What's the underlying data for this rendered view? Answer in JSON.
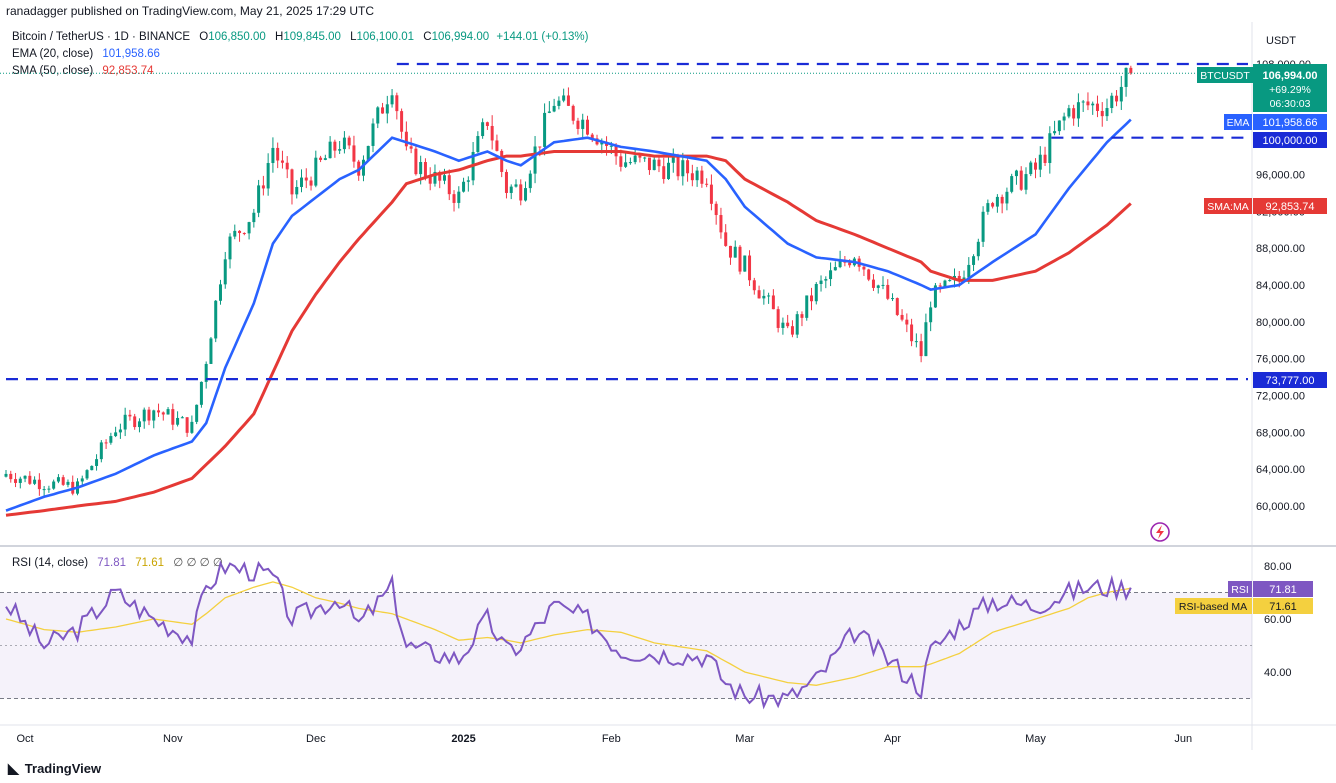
{
  "publisher_line": "ranadagger published on TradingView.com, May 21, 2025 17:29 UTC",
  "legend": {
    "symbol": "Bitcoin / TetherUS · 1D · BINANCE",
    "open_label": "O",
    "open": "106,850.00",
    "high_label": "H",
    "high": "109,845.00",
    "low_label": "L",
    "low": "106,100.01",
    "close_label": "C",
    "close": "106,994.00",
    "change": "+144.01 (+0.13%)",
    "ema_label": "EMA (20, close)",
    "ema_value": "101,958.66",
    "sma_label": "SMA (50, close)",
    "sma_value": "92,853.74",
    "rsi_label": "RSI (14, close)",
    "rsi_value": "71.81",
    "rsi_ma_value": "71.61",
    "rsi_extra": "∅ ∅ ∅ ∅"
  },
  "price_axis": {
    "currency": "USDT",
    "ticks": [
      "108,000.00",
      "104,000.00",
      "100,000.00",
      "96,000.00",
      "92,000.00",
      "88,000.00",
      "84,000.00",
      "80,000.00",
      "76,000.00",
      "72,000.00",
      "68,000.00",
      "64,000.00",
      "60,000.00"
    ],
    "tick_values": [
      108000,
      104000,
      100000,
      96000,
      92000,
      88000,
      84000,
      80000,
      76000,
      72000,
      68000,
      64000,
      60000
    ]
  },
  "badges": {
    "symbol": "BTCUSDT",
    "price": "106,994.00",
    "change_pct": "+69.29%",
    "countdown": "06:30:03",
    "ema_tag": "EMA",
    "ema_value": "101,958.66",
    "level_100k": "100,000.00",
    "sma_tag": "SMA:MA",
    "sma_value": "92,853.74",
    "level_73k": "73,777.00",
    "rsi_tag": "RSI",
    "rsi_value": "71.81",
    "rsi_ma_tag": "RSI-based MA",
    "rsi_ma_value": "71.61"
  },
  "rsi_axis": {
    "ticks": [
      "80.00",
      "60.00",
      "40.00"
    ],
    "tick_values": [
      80,
      60,
      40
    ]
  },
  "time_axis": [
    "Oct",
    "Nov",
    "Dec",
    "2025",
    "Feb",
    "Mar",
    "Apr",
    "May",
    "Jun"
  ],
  "footer": {
    "brand": "TradingView",
    "logo_icon": "tradingview-logo-icon"
  },
  "colors": {
    "up": "#089981",
    "down": "#f23645",
    "ema": "#2962ff",
    "sma": "#e53935",
    "rsi": "#7e57c2",
    "rsi_ma": "#f4d03f",
    "level": "#1a2bd6"
  },
  "chart_data": {
    "type": "candlestick",
    "timeframe": "1D",
    "ylim": [
      58000,
      110000
    ],
    "rsi_ylim": [
      20,
      90
    ],
    "horizontal_levels": [
      108000,
      100000,
      73777
    ],
    "x": [
      "2024-09-27",
      "2024-10-05",
      "2024-10-12",
      "2024-10-20",
      "2024-10-28",
      "2024-11-05",
      "2024-11-08",
      "2024-11-12",
      "2024-11-18",
      "2024-11-22",
      "2024-11-26",
      "2024-12-01",
      "2024-12-06",
      "2024-12-10",
      "2024-12-17",
      "2024-12-20",
      "2024-12-26",
      "2024-12-31",
      "2025-01-06",
      "2025-01-10",
      "2025-01-13",
      "2025-01-20",
      "2025-01-27",
      "2025-02-03",
      "2025-02-10",
      "2025-02-21",
      "2025-02-25",
      "2025-03-01",
      "2025-03-10",
      "2025-03-16",
      "2025-03-24",
      "2025-03-31",
      "2025-04-07",
      "2025-04-09",
      "2025-04-15",
      "2025-04-22",
      "2025-05-01",
      "2025-05-08",
      "2025-05-12",
      "2025-05-16",
      "2025-05-21"
    ],
    "close": [
      63500,
      62500,
      62000,
      68500,
      70500,
      68500,
      76000,
      88000,
      92000,
      99000,
      94000,
      96500,
      99500,
      97000,
      106000,
      98000,
      95500,
      93500,
      102000,
      94500,
      94500,
      104000,
      101500,
      97500,
      97000,
      96000,
      88500,
      86000,
      78500,
      83500,
      87500,
      82500,
      76500,
      82500,
      84500,
      93500,
      96500,
      103000,
      103500,
      103500,
      106994
    ],
    "ema20": [
      59500,
      61000,
      62000,
      63500,
      65500,
      67000,
      69000,
      75000,
      82000,
      88500,
      91500,
      93500,
      95500,
      96500,
      100000,
      99500,
      98500,
      97500,
      98500,
      97500,
      97000,
      99500,
      100000,
      99000,
      98500,
      97500,
      95500,
      92500,
      88500,
      87000,
      86500,
      85500,
      84000,
      83500,
      84000,
      86500,
      89500,
      94500,
      97000,
      99500,
      101959
    ],
    "sma50": [
      59000,
      59500,
      60000,
      60500,
      61500,
      63000,
      64500,
      66500,
      70000,
      74500,
      79000,
      83000,
      86500,
      89000,
      93000,
      95000,
      96000,
      96500,
      97500,
      98000,
      98000,
      98500,
      98500,
      98500,
      98000,
      98000,
      97500,
      95500,
      93000,
      91000,
      89500,
      88000,
      86500,
      85500,
      84500,
      84500,
      85500,
      87500,
      89000,
      90500,
      92854
    ],
    "rsi": [
      66,
      50,
      56,
      70,
      60,
      53,
      72,
      80,
      78,
      76,
      60,
      64,
      68,
      58,
      72,
      50,
      47,
      45,
      60,
      48,
      50,
      65,
      60,
      48,
      47,
      46,
      36,
      31,
      30,
      37,
      55,
      45,
      34,
      48,
      58,
      67,
      65,
      70,
      72,
      72,
      71.81
    ],
    "rsi_ma": [
      60,
      56,
      55,
      57,
      60,
      58,
      62,
      68,
      72,
      74,
      72,
      68,
      66,
      64,
      62,
      60,
      56,
      52,
      53,
      52,
      51,
      54,
      56,
      55,
      51,
      48,
      44,
      40,
      36,
      35,
      38,
      42,
      42,
      43,
      47,
      55,
      60,
      64,
      68,
      70,
      71.61
    ]
  }
}
